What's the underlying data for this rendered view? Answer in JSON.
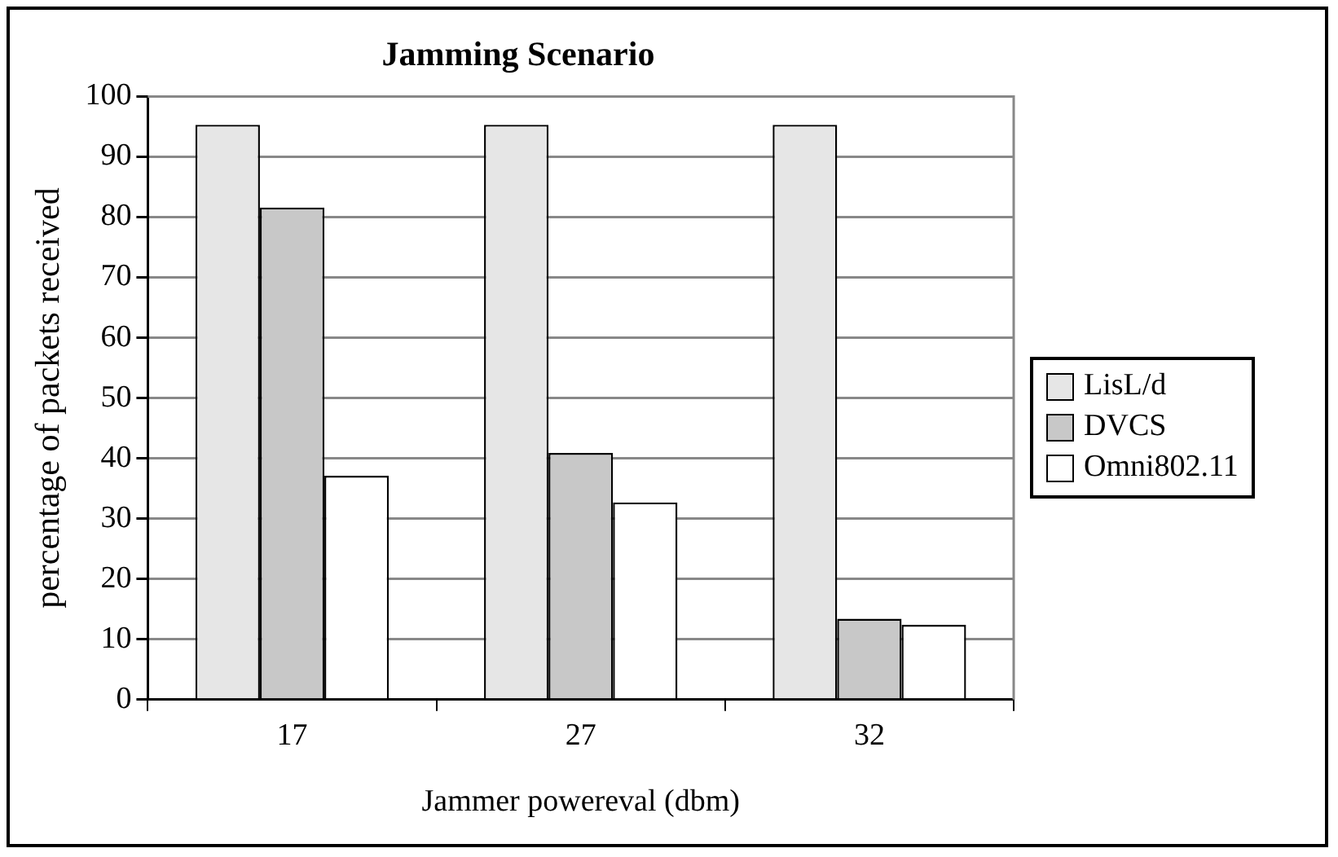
{
  "chart_data": {
    "type": "bar",
    "title": "Jamming Scenario",
    "xlabel": "Jammer powereval (dbm)",
    "ylabel": "percentage of packets received",
    "categories": [
      "17",
      "27",
      "32"
    ],
    "series": [
      {
        "name": "LisL/d",
        "color": "#e6e6e6",
        "values": [
          95.3,
          95.3,
          95.3
        ]
      },
      {
        "name": "DVCS",
        "color": "#c8c8c8",
        "values": [
          81.6,
          40.9,
          13.4
        ]
      },
      {
        "name": "Omni802.11",
        "color": "#ffffff",
        "values": [
          37.1,
          32.7,
          12.4
        ]
      }
    ],
    "ylim": [
      0,
      100
    ],
    "yticks": [
      0,
      10,
      20,
      30,
      40,
      50,
      60,
      70,
      80,
      90,
      100
    ],
    "grid": "y",
    "legend": "right"
  }
}
